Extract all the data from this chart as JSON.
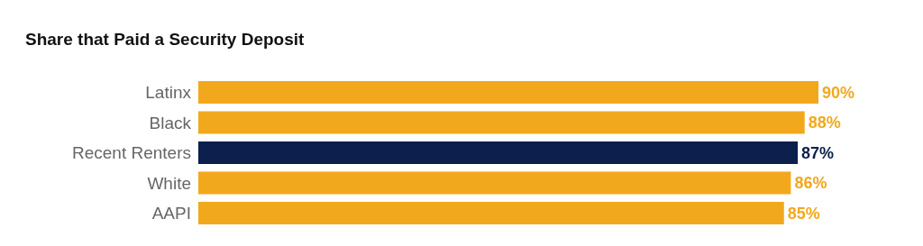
{
  "chart_data": {
    "type": "bar",
    "orientation": "horizontal",
    "title": "Share that Paid a Security Deposit",
    "categories": [
      "Latinx",
      "Black",
      "Recent Renters",
      "White",
      "AAPI"
    ],
    "values": [
      90,
      88,
      87,
      86,
      85
    ],
    "colors": [
      "#f2a81d",
      "#f2a81d",
      "#0c1f4d",
      "#f2a81d",
      "#f2a81d"
    ],
    "value_labels": [
      "90%",
      "88%",
      "87%",
      "86%",
      "85%"
    ],
    "tick_labels": "y"
  }
}
